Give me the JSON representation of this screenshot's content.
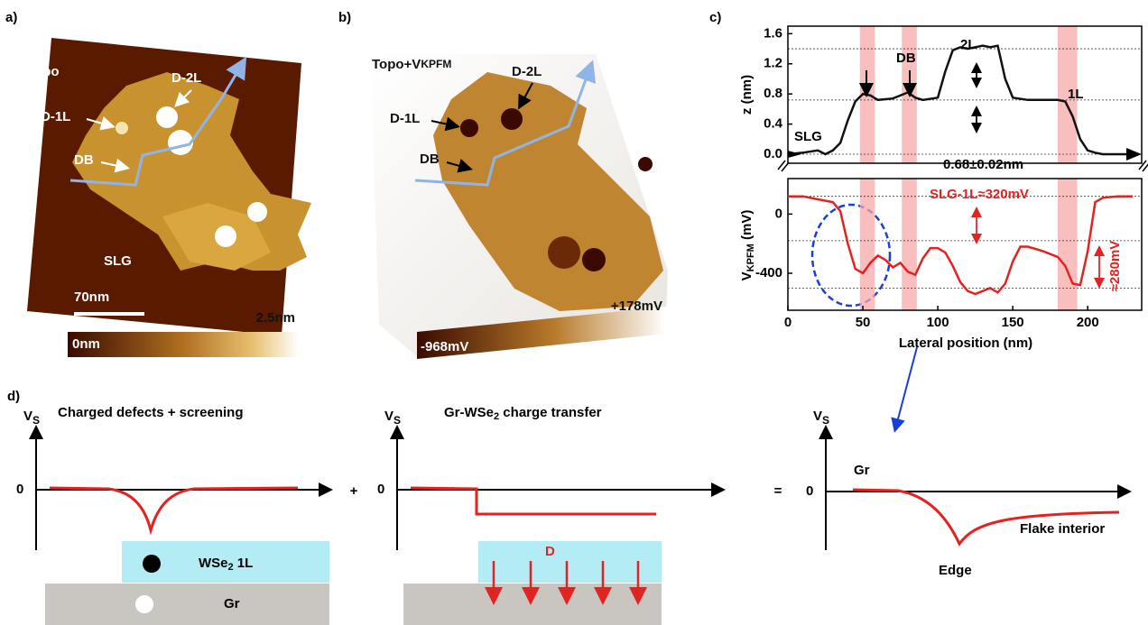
{
  "panels": {
    "a": {
      "letter": "a)",
      "mode": "Topo",
      "labels": [
        "D-2L",
        "D-1L",
        "DB",
        "SLG"
      ],
      "scale": "70nm",
      "cbar_min": "0nm",
      "cbar_max": "2.5nm"
    },
    "b": {
      "letter": "b)",
      "mode": "Topo+V",
      "mode_sub": "KPFM",
      "labels": [
        "D-2L",
        "D-1L",
        "DB"
      ],
      "cbar_min": "-968mV",
      "cbar_max": "+178mV"
    },
    "c": {
      "letter": "c)"
    },
    "d": {
      "letter": "d)",
      "title1": "Charged defects + screening",
      "title2_a": "Gr-WSe",
      "title2_sub": "2",
      "title2_b": " charge transfer",
      "axis_v": "V",
      "axis_sub": "S",
      "zero": "0",
      "plus": "+",
      "equals": "=",
      "layer_a": "WSe",
      "layer_sub": "2",
      "layer_b": " 1L",
      "gr": "Gr",
      "D": "D",
      "gr3": "Gr",
      "edge": "Edge",
      "interior": "Flake interior"
    }
  },
  "chart_data": [
    {
      "type": "line",
      "ylabel": "z (nm)",
      "xlim": [
        0,
        236
      ],
      "ylim": [
        -0.12,
        1.7
      ],
      "yticks": [
        {
          "value": 0,
          "label": "0.0"
        },
        0.4,
        0.8,
        1.2,
        1.6
      ],
      "highlights": [
        [
          48,
          58
        ],
        [
          76,
          86
        ],
        [
          180,
          193
        ]
      ],
      "reference_lines": [
        0,
        0.72,
        1.4
      ],
      "annotations": [
        "SLG",
        "DB",
        "2L",
        "1L",
        "0.68±0.02nm"
      ],
      "x": [
        0,
        10,
        20,
        25,
        30,
        35,
        40,
        45,
        50,
        55,
        60,
        70,
        80,
        85,
        90,
        100,
        105,
        110,
        115,
        120,
        130,
        135,
        140,
        145,
        150,
        160,
        170,
        180,
        185,
        190,
        195,
        200,
        205,
        210,
        220,
        230
      ],
      "series": [
        {
          "color": "#111111",
          "values": [
            0,
            0.02,
            0.05,
            0,
            0.05,
            0.15,
            0.45,
            0.7,
            0.8,
            0.78,
            0.72,
            0.74,
            0.82,
            0.75,
            0.72,
            0.75,
            1.1,
            1.38,
            1.42,
            1.4,
            1.44,
            1.42,
            1.44,
            1.0,
            0.75,
            0.72,
            0.72,
            0.72,
            0.7,
            0.5,
            0.2,
            0.05,
            0.02,
            0,
            0,
            0
          ]
        }
      ]
    },
    {
      "type": "line",
      "ylabel": "V",
      "ylabel_sub": "KPFM",
      "ylabel_unit": " (mV)",
      "xlabel": "Lateral position (nm)",
      "xlim": [
        0,
        236
      ],
      "ylim": [
        -650,
        240
      ],
      "xticks": [
        0,
        50,
        100,
        150,
        200
      ],
      "yticks": [
        0,
        -400
      ],
      "highlights": [
        [
          48,
          58
        ],
        [
          76,
          86
        ],
        [
          180,
          193
        ]
      ],
      "reference_lines": [
        120,
        -180,
        -500
      ],
      "annotations": [
        "SLG-1L≈320mV",
        "≈280mV"
      ],
      "x": [
        0,
        10,
        20,
        30,
        35,
        40,
        45,
        50,
        55,
        60,
        65,
        70,
        75,
        80,
        85,
        90,
        95,
        100,
        105,
        110,
        115,
        120,
        125,
        130,
        135,
        140,
        145,
        150,
        155,
        160,
        170,
        180,
        185,
        190,
        195,
        200,
        205,
        210,
        220,
        230
      ],
      "series": [
        {
          "color": "#e32222",
          "values": [
            120,
            120,
            100,
            80,
            20,
            -200,
            -370,
            -400,
            -330,
            -280,
            -310,
            -360,
            -330,
            -390,
            -410,
            -300,
            -230,
            -230,
            -260,
            -350,
            -460,
            -520,
            -540,
            -520,
            -500,
            -530,
            -470,
            -320,
            -220,
            -220,
            -250,
            -290,
            -350,
            -470,
            -480,
            -250,
            80,
            110,
            120,
            120
          ]
        }
      ]
    }
  ]
}
